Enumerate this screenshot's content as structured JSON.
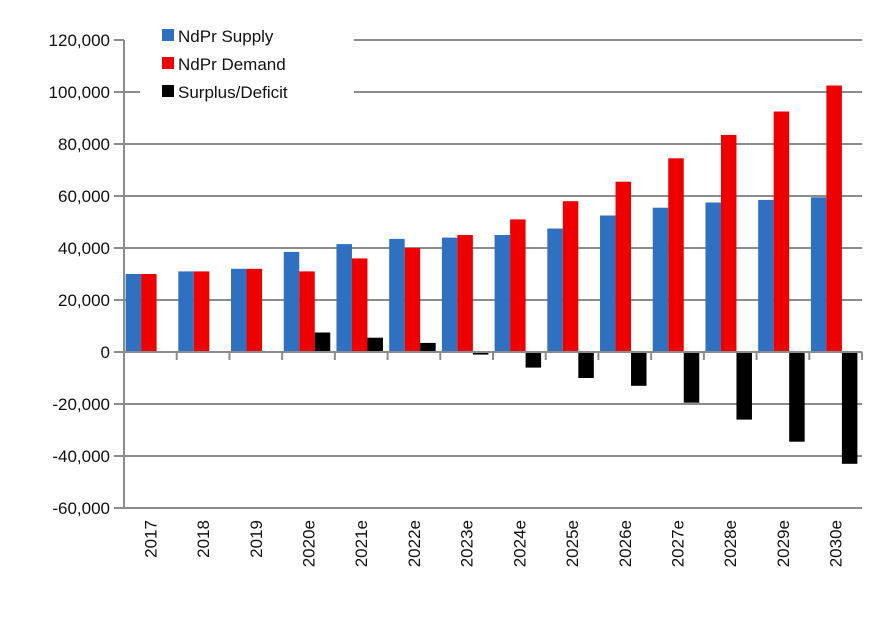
{
  "chart_data": {
    "type": "bar",
    "title": "",
    "xlabel": "",
    "ylabel": "",
    "categories": [
      "2017",
      "2018",
      "2019",
      "2020e",
      "2021e",
      "2022e",
      "2023e",
      "2024e",
      "2025e",
      "2026e",
      "2027e",
      "2028e",
      "2029e",
      "2030e"
    ],
    "series": [
      {
        "name": "NdPr Supply",
        "color": "#3070c0",
        "values": [
          30000,
          31000,
          32000,
          38500,
          41500,
          43500,
          44000,
          45000,
          47500,
          52500,
          55500,
          57500,
          58500,
          59500
        ]
      },
      {
        "name": "NdPr Demand",
        "color": "#ee0000",
        "values": [
          30000,
          31000,
          32000,
          31000,
          36000,
          40000,
          45000,
          51000,
          58000,
          65500,
          74500,
          83500,
          92500,
          102500
        ]
      },
      {
        "name": "Surplus/Deficit",
        "color": "#000000",
        "values": [
          0,
          0,
          0,
          7500,
          5500,
          3500,
          -1000,
          -6000,
          -10000,
          -13000,
          -19500,
          -26000,
          -34500,
          -43000
        ]
      }
    ],
    "ylim": [
      -60000,
      120000
    ],
    "yticks": [
      -60000,
      -40000,
      -20000,
      0,
      20000,
      40000,
      60000,
      80000,
      100000,
      120000
    ],
    "ytick_labels": [
      "-60,000",
      "-40,000",
      "-20,000",
      "0",
      "20,000",
      "40,000",
      "60,000",
      "80,000",
      "100,000",
      "120,000"
    ],
    "grid": true,
    "legend_position": "top-left"
  }
}
